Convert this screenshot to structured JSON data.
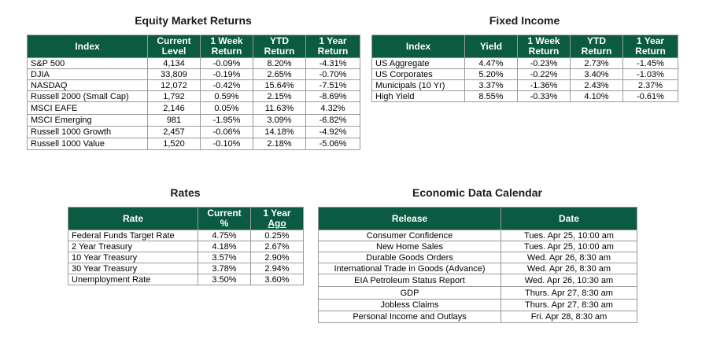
{
  "equity": {
    "title": "Equity Market Returns",
    "headers": [
      {
        "line1": "Index",
        "line2": ""
      },
      {
        "line1": "Current",
        "line2": "Level"
      },
      {
        "line1": "1 Week",
        "line2": "Return"
      },
      {
        "line1": "YTD",
        "line2": "Return"
      },
      {
        "line1": "1 Year",
        "line2": "Return"
      }
    ],
    "rows": [
      [
        "S&P 500",
        "4,134",
        "-0.09%",
        "8.20%",
        "-4.31%"
      ],
      [
        "DJIA",
        "33,809",
        "-0.19%",
        "2.65%",
        "-0.70%"
      ],
      [
        "NASDAQ",
        "12,072",
        "-0.42%",
        "15.64%",
        "-7.51%"
      ],
      [
        "Russell 2000 (Small Cap)",
        "1,792",
        "0.59%",
        "2.15%",
        "-8.69%"
      ],
      [
        "MSCI EAFE",
        "2,146",
        "0.05%",
        "11.63%",
        "4.32%"
      ],
      [
        "MSCI Emerging",
        "981",
        "-1.95%",
        "3.09%",
        "-6.82%"
      ],
      [
        "Russell 1000 Growth",
        "2,457",
        "-0.06%",
        "14.18%",
        "-4.92%"
      ],
      [
        "Russell 1000 Value",
        "1,520",
        "-0.10%",
        "2.18%",
        "-5.06%"
      ]
    ]
  },
  "fixed": {
    "title": "Fixed Income",
    "headers": [
      {
        "line1": "Index",
        "line2": ""
      },
      {
        "line1": "Yield",
        "line2": ""
      },
      {
        "line1": "1 Week",
        "line2": "Return"
      },
      {
        "line1": "YTD",
        "line2": "Return"
      },
      {
        "line1": "1 Year",
        "line2": "Return"
      }
    ],
    "rows": [
      [
        "US Aggregate",
        "4.47%",
        "-0.23%",
        "2.73%",
        "-1.45%"
      ],
      [
        "US Corporates",
        "5.20%",
        "-0.22%",
        "3.40%",
        "-1.03%"
      ],
      [
        "Municipals (10 Yr)",
        "3.37%",
        "-1.36%",
        "2.43%",
        "2.37%"
      ],
      [
        "High Yield",
        "8.55%",
        "-0.33%",
        "4.10%",
        "-0.61%"
      ]
    ]
  },
  "rates": {
    "title": "Rates",
    "headers": [
      {
        "line1": "Rate",
        "line2": ""
      },
      {
        "line1": "Current",
        "line2": "%"
      },
      {
        "line1": "1 Year",
        "line2": "Ago"
      }
    ],
    "rows": [
      [
        "Federal Funds Target Rate",
        "4.75%",
        "0.25%"
      ],
      [
        "2 Year Treasury",
        "4.18%",
        "2.67%"
      ],
      [
        "10 Year Treasury",
        "3.57%",
        "2.90%"
      ],
      [
        "30 Year Treasury",
        "3.78%",
        "2.94%"
      ],
      [
        "Unemployment Rate",
        "3.50%",
        "3.60%"
      ]
    ]
  },
  "calendar": {
    "title": "Economic Data Calendar",
    "headers": [
      {
        "line1": "Release",
        "line2": ""
      },
      {
        "line1": "Date",
        "line2": ""
      }
    ],
    "rows": [
      [
        "Consumer Confidence",
        "Tues. Apr 25, 10:00 am"
      ],
      [
        "New Home Sales",
        "Tues. Apr 25, 10:00 am"
      ],
      [
        "Durable Goods Orders",
        "Wed. Apr 26, 8:30 am"
      ],
      [
        "International Trade in Goods (Advance)",
        "Wed. Apr 26, 8:30 am"
      ],
      [
        "EIA Petroleum Status Report",
        "Wed. Apr 26, 10:30 am"
      ],
      [
        "GDP",
        "Thurs. Apr 27, 8:30 am"
      ],
      [
        "Jobless Claims",
        "Thurs. Apr 27, 8:30 am"
      ],
      [
        "Personal Income and Outlays",
        "Fri. Apr 28, 8:30 am"
      ]
    ]
  }
}
